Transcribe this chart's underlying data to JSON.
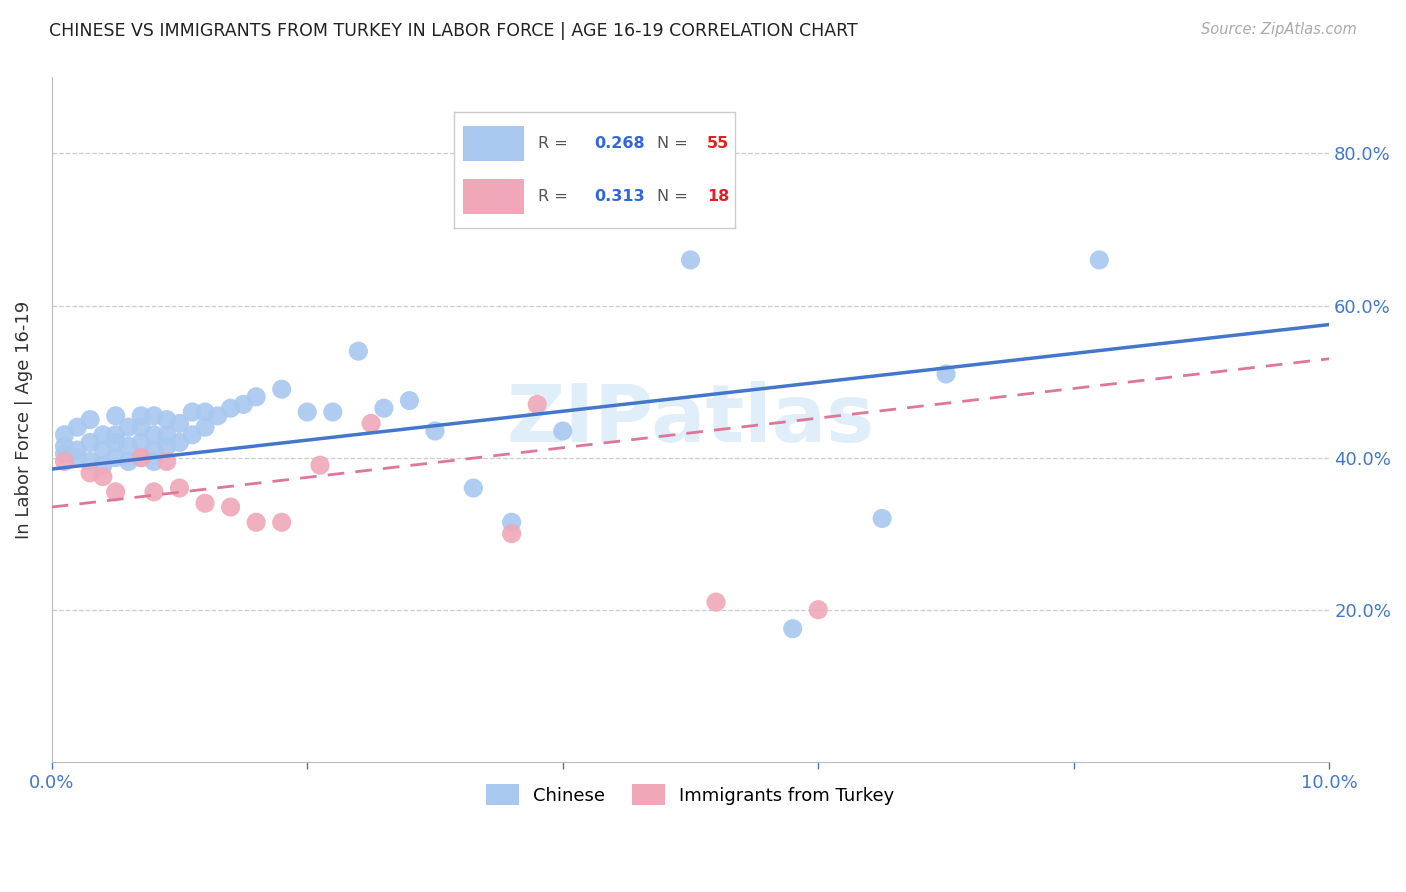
{
  "title": "CHINESE VS IMMIGRANTS FROM TURKEY IN LABOR FORCE | AGE 16-19 CORRELATION CHART",
  "source": "Source: ZipAtlas.com",
  "ylabel": "In Labor Force | Age 16-19",
  "xlim": [
    0.0,
    0.1
  ],
  "ylim": [
    0.0,
    0.9
  ],
  "ytick_values": [
    0.2,
    0.4,
    0.6,
    0.8
  ],
  "ytick_labels": [
    "20.0%",
    "40.0%",
    "60.0%",
    "80.0%"
  ],
  "xtick_values": [
    0.0,
    0.02,
    0.04,
    0.06,
    0.08,
    0.1
  ],
  "xtick_labels": [
    "0.0%",
    "",
    "",
    "",
    "",
    "10.0%"
  ],
  "chinese_R": "0.268",
  "chinese_N": "55",
  "turkey_R": "0.313",
  "turkey_N": "18",
  "chinese_color": "#a8c8f0",
  "turkey_color": "#f0a8b8",
  "chinese_line_color": "#4477cc",
  "turkey_line_color": "#dd7799",
  "legend_R_color": "#3366dd",
  "legend_N_color": "#dd2222",
  "watermark": "ZIPatlas",
  "chinese_x": [
    0.001,
    0.001,
    0.001,
    0.002,
    0.002,
    0.002,
    0.003,
    0.003,
    0.003,
    0.004,
    0.004,
    0.004,
    0.005,
    0.005,
    0.005,
    0.005,
    0.006,
    0.006,
    0.006,
    0.007,
    0.007,
    0.007,
    0.007,
    0.008,
    0.008,
    0.008,
    0.008,
    0.009,
    0.009,
    0.009,
    0.01,
    0.01,
    0.011,
    0.011,
    0.012,
    0.012,
    0.013,
    0.014,
    0.015,
    0.016,
    0.018,
    0.02,
    0.022,
    0.024,
    0.026,
    0.028,
    0.03,
    0.033,
    0.036,
    0.04,
    0.05,
    0.058,
    0.065,
    0.07,
    0.082
  ],
  "chinese_y": [
    0.405,
    0.415,
    0.43,
    0.4,
    0.41,
    0.44,
    0.395,
    0.42,
    0.45,
    0.39,
    0.41,
    0.43,
    0.4,
    0.42,
    0.43,
    0.455,
    0.395,
    0.415,
    0.44,
    0.4,
    0.42,
    0.44,
    0.455,
    0.395,
    0.41,
    0.43,
    0.455,
    0.415,
    0.43,
    0.45,
    0.42,
    0.445,
    0.43,
    0.46,
    0.44,
    0.46,
    0.455,
    0.465,
    0.47,
    0.48,
    0.49,
    0.46,
    0.46,
    0.54,
    0.465,
    0.475,
    0.435,
    0.36,
    0.315,
    0.435,
    0.66,
    0.175,
    0.32,
    0.51,
    0.66
  ],
  "turkey_x": [
    0.001,
    0.003,
    0.004,
    0.005,
    0.007,
    0.008,
    0.009,
    0.01,
    0.012,
    0.014,
    0.016,
    0.018,
    0.021,
    0.025,
    0.036,
    0.038,
    0.052,
    0.06
  ],
  "turkey_y": [
    0.395,
    0.38,
    0.375,
    0.355,
    0.4,
    0.355,
    0.395,
    0.36,
    0.34,
    0.335,
    0.315,
    0.315,
    0.39,
    0.445,
    0.3,
    0.47,
    0.21,
    0.2
  ],
  "chinese_line_x0": 0.0,
  "chinese_line_y0": 0.385,
  "chinese_line_x1": 0.1,
  "chinese_line_y1": 0.575,
  "turkey_line_x0": 0.0,
  "turkey_line_y0": 0.335,
  "turkey_line_x1": 0.1,
  "turkey_line_y1": 0.53
}
